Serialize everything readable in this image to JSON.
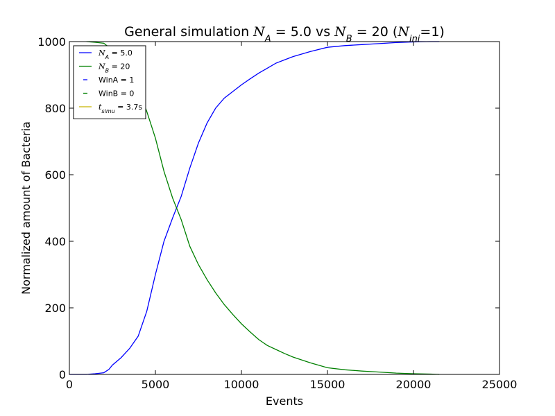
{
  "chart_data": {
    "type": "line",
    "title_parts": [
      {
        "text": "General simulation ",
        "italic": false,
        "sub": false
      },
      {
        "text": "N",
        "italic": true,
        "sub": false
      },
      {
        "text": "A",
        "italic": true,
        "sub": true
      },
      {
        "text": " = 5.0 vs ",
        "italic": false,
        "sub": false
      },
      {
        "text": "N",
        "italic": true,
        "sub": false
      },
      {
        "text": "B",
        "italic": true,
        "sub": true
      },
      {
        "text": " = 20 (",
        "italic": false,
        "sub": false
      },
      {
        "text": "N",
        "italic": true,
        "sub": false
      },
      {
        "text": "ini",
        "italic": true,
        "sub": true
      },
      {
        "text": "=1)",
        "italic": false,
        "sub": false
      }
    ],
    "xlabel": "Events",
    "ylabel": "Normalized amount of Bacteria",
    "xlim": [
      0,
      25000
    ],
    "ylim": [
      0,
      1000
    ],
    "xticks": [
      0,
      5000,
      10000,
      15000,
      20000,
      25000
    ],
    "yticks": [
      0,
      200,
      400,
      600,
      800,
      1000
    ],
    "grid": false,
    "legend_position": "top-left",
    "series": [
      {
        "name_parts": [
          {
            "text": "N",
            "italic": true,
            "sub": false
          },
          {
            "text": "A",
            "italic": true,
            "sub": true
          },
          {
            "text": " = 5.0",
            "italic": false,
            "sub": false
          }
        ],
        "color": "#0000ff",
        "style": "solid",
        "x": [
          0,
          1000,
          1500,
          2000,
          2300,
          2500,
          3000,
          3500,
          4000,
          4500,
          5000,
          5500,
          6000,
          6500,
          7000,
          7500,
          8000,
          8500,
          9000,
          9500,
          10000,
          10500,
          11000,
          11500,
          12000,
          12500,
          13000,
          14000,
          15000,
          16000,
          17000,
          18000,
          19000,
          20000,
          21000,
          21500
        ],
        "y": [
          0,
          0,
          2,
          5,
          15,
          28,
          50,
          78,
          115,
          190,
          300,
          400,
          470,
          535,
          620,
          695,
          755,
          800,
          830,
          850,
          870,
          888,
          905,
          920,
          935,
          945,
          955,
          970,
          983,
          988,
          991,
          994,
          997,
          999,
          1000,
          1000
        ]
      },
      {
        "name_parts": [
          {
            "text": "N",
            "italic": true,
            "sub": false
          },
          {
            "text": "B",
            "italic": true,
            "sub": true
          },
          {
            "text": " = 20",
            "italic": false,
            "sub": false
          }
        ],
        "color": "#008000",
        "style": "solid",
        "x": [
          1000,
          1500,
          2000,
          2500,
          3000,
          3500,
          4000,
          4500,
          5000,
          5500,
          6000,
          6500,
          7000,
          7500,
          8000,
          8500,
          9000,
          9500,
          10000,
          10500,
          11000,
          11500,
          12000,
          12500,
          13000,
          14000,
          15000,
          16000,
          17000,
          18000,
          19000,
          20000,
          21000,
          21500
        ],
        "y": [
          1000,
          998,
          995,
          975,
          945,
          900,
          860,
          790,
          710,
          610,
          530,
          465,
          385,
          330,
          285,
          245,
          210,
          180,
          152,
          128,
          105,
          87,
          75,
          63,
          52,
          35,
          20,
          14,
          10,
          7,
          4,
          2,
          1,
          0
        ]
      }
    ],
    "legend_extra": [
      {
        "label_parts": [
          {
            "text": "WinA = 1",
            "italic": false,
            "sub": false
          }
        ],
        "color": "#0000ff",
        "style": "dashed"
      },
      {
        "label_parts": [
          {
            "text": "WinB = 0",
            "italic": false,
            "sub": false
          }
        ],
        "color": "#008000",
        "style": "dashed"
      },
      {
        "label_parts": [
          {
            "text": "t",
            "italic": true,
            "sub": false
          },
          {
            "text": "simu",
            "italic": true,
            "sub": true
          },
          {
            "text": " = 3.7s",
            "italic": false,
            "sub": false
          }
        ],
        "color": "#c8b400",
        "style": "solid"
      }
    ]
  }
}
